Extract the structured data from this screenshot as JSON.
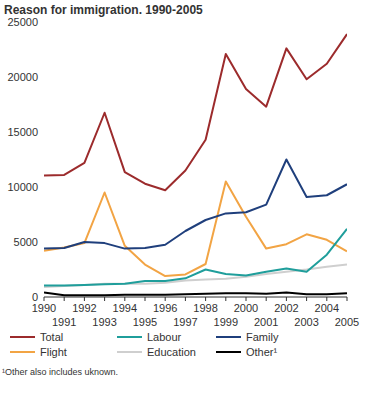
{
  "chart_data": {
    "type": "line",
    "title": "Reason for immigration. 1990-2005",
    "footnote": "¹Other also includes uknown.",
    "x": [
      1990,
      1991,
      1992,
      1993,
      1994,
      1995,
      1996,
      1997,
      1998,
      1999,
      2000,
      2001,
      2002,
      2003,
      2004,
      2005
    ],
    "xlim": [
      1990,
      2005
    ],
    "xticks": [
      1990,
      1991,
      1992,
      1993,
      1994,
      1995,
      1996,
      1997,
      1998,
      1999,
      2000,
      2001,
      2002,
      2003,
      2004,
      2005
    ],
    "ylim": [
      0,
      25000
    ],
    "yticks": [
      0,
      5000,
      10000,
      15000,
      20000,
      25000
    ],
    "grid": false,
    "legend": "bottom",
    "series": [
      {
        "name": "Total",
        "color": "#9c2b2c",
        "values": [
          11050,
          11100,
          12200,
          16750,
          11350,
          10300,
          9700,
          11500,
          14300,
          22100,
          18900,
          17300,
          22600,
          19800,
          21200,
          23900
        ]
      },
      {
        "name": "Labour",
        "color": "#1f9e9b",
        "values": [
          1050,
          1050,
          1100,
          1150,
          1200,
          1450,
          1450,
          1700,
          2500,
          2100,
          1950,
          2300,
          2600,
          2300,
          3850,
          6200
        ]
      },
      {
        "name": "Family",
        "color": "#1f3f7c",
        "values": [
          4400,
          4450,
          5000,
          4900,
          4400,
          4450,
          4750,
          6000,
          7000,
          7600,
          7700,
          8400,
          12500,
          9100,
          9250,
          10250
        ]
      },
      {
        "name": "Flight",
        "color": "#f2a444",
        "values": [
          4200,
          4500,
          4900,
          9500,
          4650,
          2950,
          1900,
          2050,
          3000,
          10500,
          7300,
          4400,
          4800,
          5700,
          5200,
          4150
        ]
      },
      {
        "name": "Education",
        "color": "#cfcfcf",
        "values": [
          900,
          1000,
          1100,
          1200,
          1200,
          1200,
          1300,
          1500,
          1600,
          1650,
          1850,
          2100,
          2300,
          2500,
          2750,
          2950
        ]
      },
      {
        "name": "Other¹",
        "color": "#000000",
        "values": [
          400,
          150,
          150,
          150,
          200,
          200,
          200,
          250,
          300,
          350,
          350,
          300,
          400,
          250,
          250,
          350
        ]
      }
    ]
  }
}
